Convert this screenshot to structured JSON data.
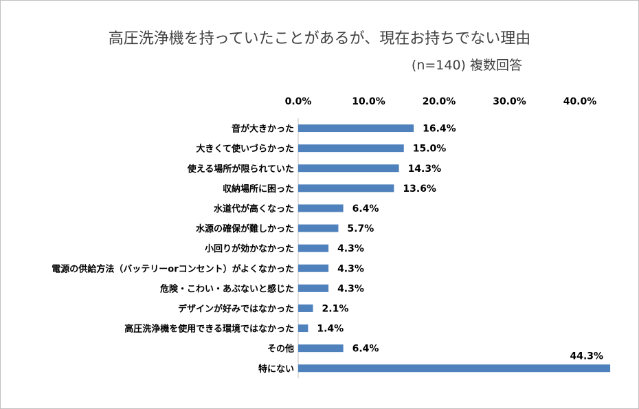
{
  "chart_data": {
    "type": "bar",
    "orientation": "horizontal",
    "title": "高圧洗浄機を持っていたことがあるが、現在お持ちでない理由",
    "subtitle": "(n=140) 複数回答",
    "xlim": [
      0,
      40
    ],
    "x_ticks": [
      "0.0%",
      "10.0%",
      "20.0%",
      "30.0%",
      "40.0%"
    ],
    "x_tick_values": [
      0,
      10,
      20,
      30,
      40
    ],
    "grid": false,
    "bar_color": "#4f81bd",
    "categories": [
      "音が大きかった",
      "大きくて使いづらかった",
      "使える場所が限られていた",
      "収納場所に困った",
      "水道代が高くなった",
      "水源の確保が難しかった",
      "小回りが効かなかった",
      "電源の供給方法（バッテリーorコンセント）がよくなかった",
      "危険・こわい・あぶないと感じた",
      "デザインが好みではなかった",
      "高圧洗浄機を使用できる環境ではなかった",
      "その他",
      "特にない"
    ],
    "values": [
      16.4,
      15.0,
      14.3,
      13.6,
      6.4,
      5.7,
      4.3,
      4.3,
      4.3,
      2.1,
      1.4,
      6.4,
      44.3
    ],
    "value_labels": [
      "16.4%",
      "15.0%",
      "14.3%",
      "13.6%",
      "6.4%",
      "5.7%",
      "4.3%",
      "4.3%",
      "4.3%",
      "2.1%",
      "1.4%",
      "6.4%",
      "44.3%"
    ]
  }
}
